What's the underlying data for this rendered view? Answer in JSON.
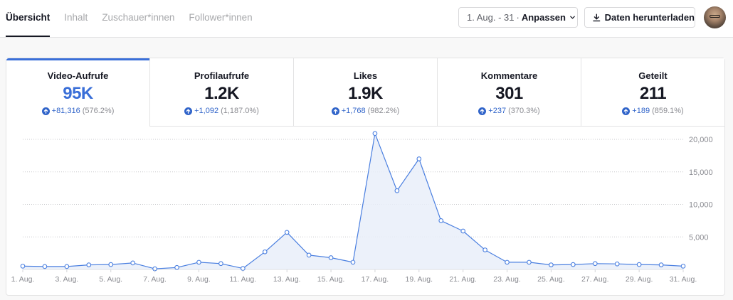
{
  "tabs": [
    {
      "label": "Übersicht",
      "active": true
    },
    {
      "label": "Inhalt",
      "active": false
    },
    {
      "label": "Zuschauer*innen",
      "active": false
    },
    {
      "label": "Follower*innen",
      "active": false
    }
  ],
  "date_range": {
    "range": "1. Aug. - 31",
    "separator": "·",
    "adjust_label": "Anpassen"
  },
  "download_label": "Daten herunterladen",
  "colors": {
    "accent": "#3a6fd8",
    "positive": "#2f63c9",
    "fill": "#e9eef9"
  },
  "metrics": [
    {
      "label": "Video-Aufrufe",
      "value": "95K",
      "change": "+81,316",
      "percent": "(576.2%)",
      "active": true
    },
    {
      "label": "Profilaufrufe",
      "value": "1.2K",
      "change": "+1,092",
      "percent": "(1,187.0%)",
      "active": false
    },
    {
      "label": "Likes",
      "value": "1.9K",
      "change": "+1,768",
      "percent": "(982.2%)",
      "active": false
    },
    {
      "label": "Kommentare",
      "value": "301",
      "change": "+237",
      "percent": "(370.3%)",
      "active": false
    },
    {
      "label": "Geteilt",
      "value": "211",
      "change": "+189",
      "percent": "(859.1%)",
      "active": false
    }
  ],
  "chart_data": {
    "type": "area",
    "series_name": "Video-Aufrufe",
    "x": [
      "1. Aug.",
      "2. Aug.",
      "3. Aug.",
      "4. Aug.",
      "5. Aug.",
      "6. Aug.",
      "7. Aug.",
      "8. Aug.",
      "9. Aug.",
      "10. Aug.",
      "11. Aug.",
      "12. Aug.",
      "13. Aug.",
      "14. Aug.",
      "15. Aug.",
      "16. Aug.",
      "17. Aug.",
      "18. Aug.",
      "19. Aug.",
      "20. Aug.",
      "21. Aug.",
      "22. Aug.",
      "23. Aug.",
      "24. Aug.",
      "25. Aug.",
      "26. Aug.",
      "27. Aug.",
      "28. Aug.",
      "29. Aug.",
      "30. Aug.",
      "31. Aug."
    ],
    "values": [
      500,
      450,
      450,
      700,
      750,
      1000,
      100,
      300,
      1100,
      900,
      150,
      2700,
      5700,
      2200,
      1800,
      1100,
      20900,
      12100,
      17000,
      7500,
      5900,
      3000,
      1100,
      1100,
      700,
      750,
      900,
      850,
      750,
      700,
      500
    ],
    "x_tick_labels": [
      "1. Aug.",
      "3. Aug.",
      "5. Aug.",
      "7. Aug.",
      "9. Aug.",
      "11. Aug.",
      "13. Aug.",
      "15. Aug.",
      "17. Aug.",
      "19. Aug.",
      "21. Aug.",
      "23. Aug.",
      "25. Aug.",
      "27. Aug.",
      "29. Aug.",
      "31. Aug."
    ],
    "y_ticks": [
      5000,
      10000,
      15000,
      20000
    ],
    "y_tick_labels": [
      "5,000",
      "10,000",
      "15,000",
      "20,000"
    ],
    "ylim": [
      0,
      20000
    ],
    "grid": true,
    "y_axis_side": "right"
  }
}
